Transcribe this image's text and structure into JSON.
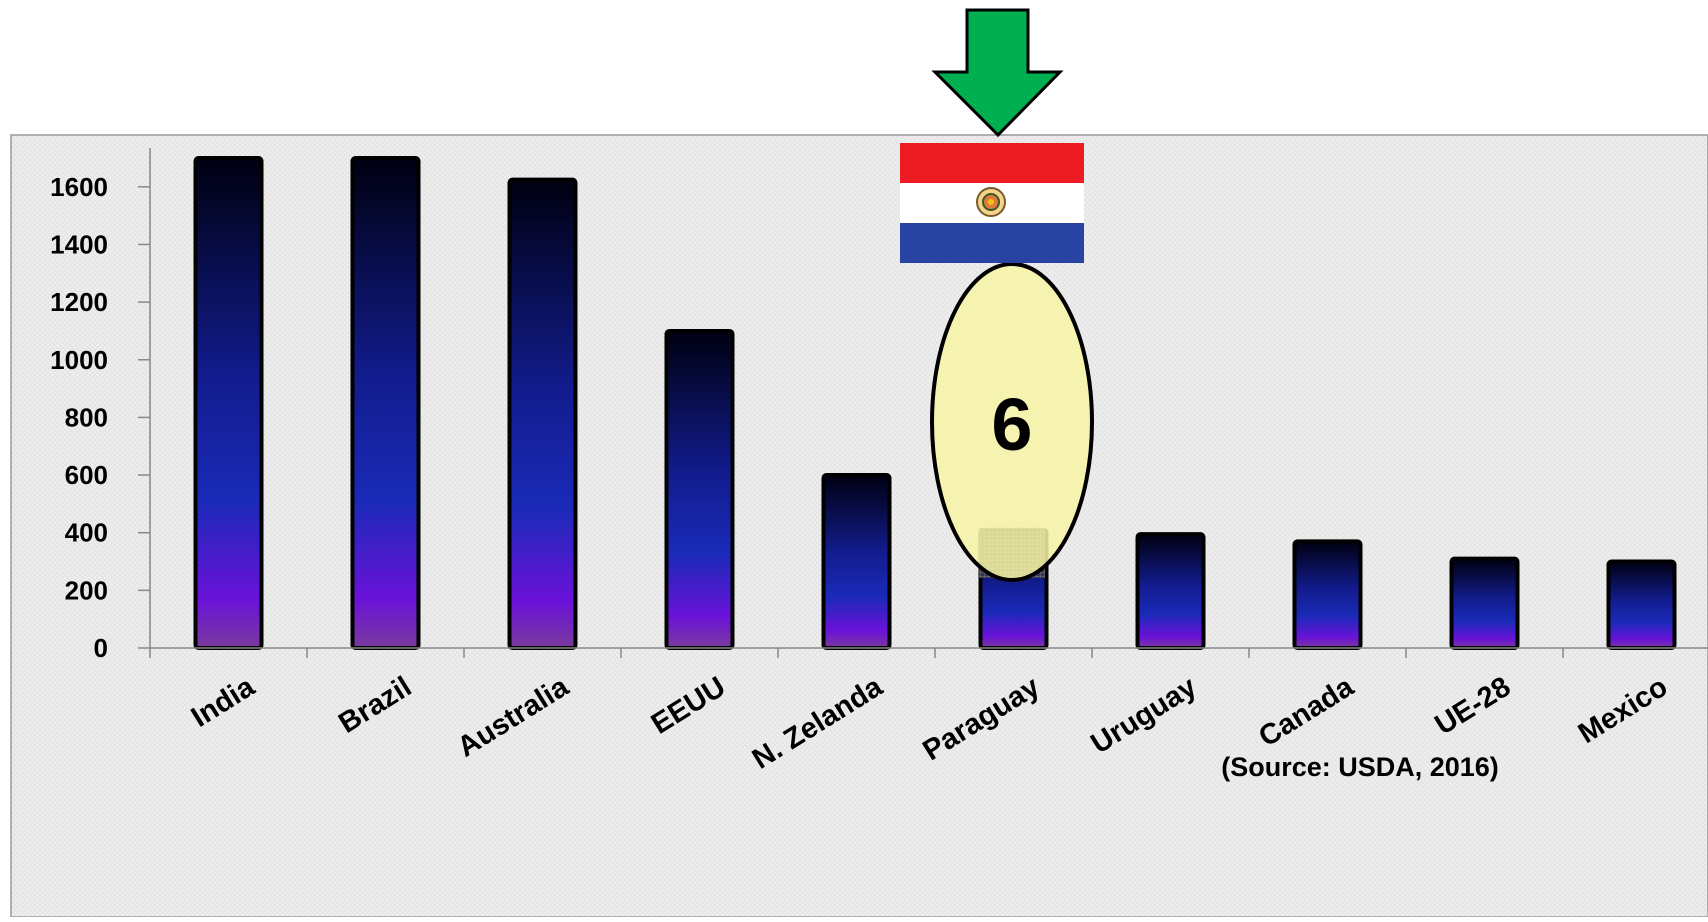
{
  "chart_data": {
    "type": "bar",
    "title": "",
    "xlabel": "",
    "ylabel": "",
    "ylim": [
      0,
      1700
    ],
    "yticks": [
      0,
      200,
      400,
      600,
      800,
      1000,
      1200,
      1400,
      1600
    ],
    "categories": [
      "India",
      "Brazil",
      "Australia",
      "EEUU",
      "N. Zelanda",
      "Paraguay",
      "Uruguay",
      "Canada",
      "UE-28",
      "Mexico"
    ],
    "values": [
      1700,
      1700,
      1625,
      1100,
      600,
      410,
      395,
      370,
      310,
      300
    ],
    "grid": false,
    "legend": "none",
    "highlight_category": "Paraguay",
    "highlight_rank": "6",
    "source_note": "(Source: USDA, 2016)"
  },
  "colors": {
    "arrow": "#00b050",
    "ellipse_fill": "#f8f4a6",
    "bar_top": "#000010",
    "bar_mid": "#1a2ab8",
    "bar_low": "#6a12d8",
    "bar_base": "#7a3a9e",
    "flag_red": "#ed1c24",
    "flag_white": "#ffffff",
    "flag_blue": "#2843a2"
  },
  "icons": {
    "arrow": "down-arrow-icon",
    "flag": "paraguay-flag-icon"
  }
}
